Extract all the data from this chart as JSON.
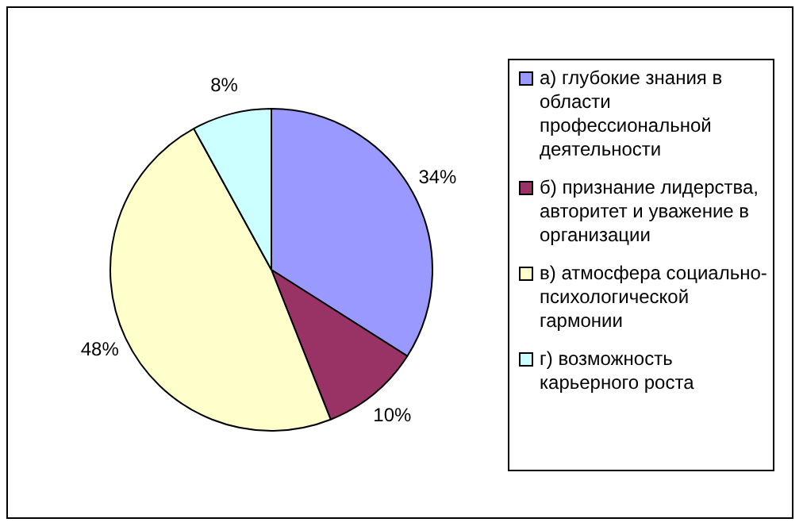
{
  "chart_data": {
    "type": "pie",
    "categories": [
      "а) глубокие знания в области профессиональной деятельности",
      "б) признание лидерства, авторитет и уважение в организации",
      "в) атмосфера социально-психологической гармонии",
      "г) возможность карьерного роста"
    ],
    "values": [
      34,
      10,
      48,
      8
    ],
    "colors": [
      "#9999ff",
      "#993366",
      "#ffffcc",
      "#ccffff"
    ],
    "value_labels": [
      "34%",
      "10%",
      "48%",
      "8%"
    ],
    "legend": "right"
  }
}
